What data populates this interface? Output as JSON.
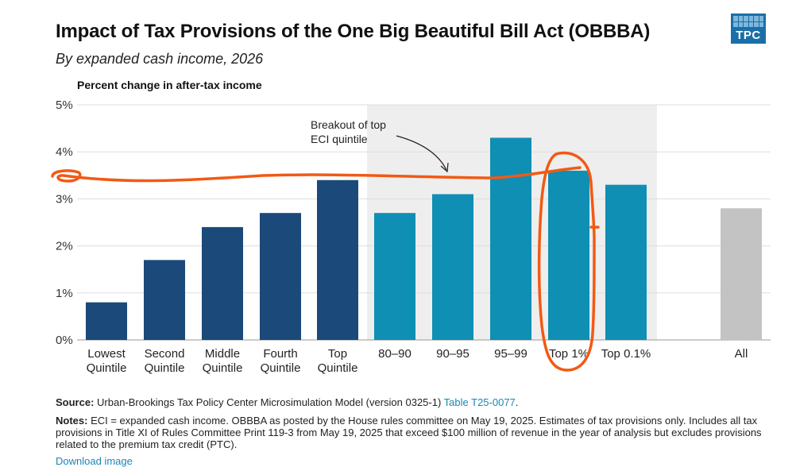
{
  "header": {
    "title": "Impact of Tax Provisions of the One Big Beautiful Bill Act (OBBBA)",
    "subtitle": "By expanded cash income, 2026",
    "logo_text": "TPC"
  },
  "chart_data": {
    "type": "bar",
    "ylabel": "Percent change in after-tax income",
    "ylim": [
      0,
      5
    ],
    "yticks": [
      0,
      1,
      2,
      3,
      4,
      5
    ],
    "ytick_labels": [
      "0%",
      "1%",
      "2%",
      "3%",
      "4%",
      "5%"
    ],
    "categories": [
      [
        "Lowest",
        "Quintile"
      ],
      [
        "Second",
        "Quintile"
      ],
      [
        "Middle",
        "Quintile"
      ],
      [
        "Fourth",
        "Quintile"
      ],
      [
        "Top",
        "Quintile"
      ],
      [
        "80–90"
      ],
      [
        "90–95"
      ],
      [
        "95–99"
      ],
      [
        "Top 1%"
      ],
      [
        "Top 0.1%"
      ],
      [
        "All"
      ]
    ],
    "values": [
      0.8,
      1.7,
      2.4,
      2.7,
      3.4,
      2.7,
      3.1,
      4.3,
      3.6,
      3.3,
      2.8
    ],
    "groups": [
      "quintile",
      "quintile",
      "quintile",
      "quintile",
      "quintile",
      "top",
      "top",
      "top",
      "top",
      "top",
      "all"
    ],
    "colors": {
      "quintile": "#1b4a7a",
      "top": "#0f8fb3",
      "all": "#c3c3c3",
      "highlight_bg": "#eeeeee",
      "markup": "#f05a14"
    },
    "annotation": [
      "Breakout of top",
      "ECI quintile"
    ],
    "grid": true
  },
  "footer": {
    "source_label": "Source:",
    "source_text": " Urban-Brookings Tax Policy Center Microsimulation Model (version 0325-1) ",
    "source_link": "Table T25-0077",
    "source_end": ".",
    "notes_label": "Notes:",
    "notes_text": " ECI = expanded cash income. OBBBA as posted by the House rules committee on May 19, 2025. Estimates of tax provisions only. Includes all tax provisions in Title XI of Rules Committee Print 119-3 from May 19, 2025 that exceed $100 million of revenue in the year of analysis but excludes provisions related to the premium tax credit (PTC).",
    "download": "Download image"
  }
}
